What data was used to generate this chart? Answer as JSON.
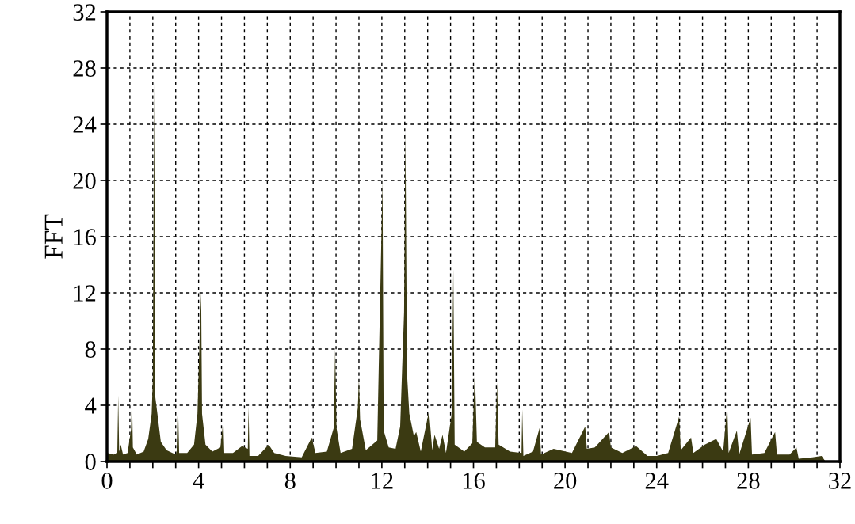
{
  "chart_data": {
    "type": "area",
    "ylabel": "FFT",
    "xlim": [
      0,
      32
    ],
    "ylim": [
      0,
      32
    ],
    "xticks": [
      0,
      {
        "value": 1,
        "label": null
      },
      {
        "value": 2,
        "label": null
      },
      {
        "value": 3,
        "label": null
      },
      4,
      {
        "value": 5,
        "label": null
      },
      {
        "value": 6,
        "label": null
      },
      {
        "value": 7,
        "label": null
      },
      8,
      {
        "value": 9,
        "label": null
      },
      {
        "value": 10,
        "label": null
      },
      {
        "value": 11,
        "label": null
      },
      12,
      {
        "value": 13,
        "label": null
      },
      {
        "value": 14,
        "label": null
      },
      {
        "value": 15,
        "label": null
      },
      16,
      {
        "value": 17,
        "label": null
      },
      {
        "value": 18,
        "label": null
      },
      {
        "value": 19,
        "label": null
      },
      20,
      {
        "value": 21,
        "label": null
      },
      {
        "value": 22,
        "label": null
      },
      {
        "value": 23,
        "label": null
      },
      24,
      {
        "value": 25,
        "label": null
      },
      {
        "value": 26,
        "label": null
      },
      {
        "value": 27,
        "label": null
      },
      28,
      {
        "value": 29,
        "label": null
      },
      {
        "value": 30,
        "label": null
      },
      {
        "value": 31,
        "label": null
      },
      32
    ],
    "yticks": [
      0,
      4,
      8,
      12,
      16,
      20,
      24,
      28,
      32
    ],
    "grid": true,
    "series": [
      {
        "color": "#3b3a12",
        "x": [
          0.02,
          0.3,
          0.45,
          0.49,
          0.53,
          0.6,
          0.7,
          0.9,
          1.05,
          1.09,
          1.13,
          1.3,
          1.6,
          1.8,
          1.95,
          2.0,
          2.06,
          2.1,
          2.2,
          2.35,
          2.6,
          3.0,
          3.08,
          3.11,
          3.15,
          3.5,
          3.8,
          3.95,
          4.05,
          4.11,
          4.15,
          4.3,
          4.6,
          4.95,
          5.08,
          5.12,
          5.5,
          5.9,
          6.15,
          6.18,
          6.22,
          6.6,
          7.06,
          7.3,
          7.8,
          8.5,
          8.94,
          9.1,
          9.6,
          9.9,
          9.96,
          10.02,
          10.2,
          10.7,
          10.95,
          11.0,
          11.05,
          11.3,
          11.8,
          12.03,
          12.08,
          12.3,
          12.6,
          12.8,
          12.97,
          13.03,
          13.1,
          13.2,
          13.4,
          13.5,
          13.7,
          14.06,
          14.2,
          14.3,
          14.5,
          14.65,
          14.8,
          15.05,
          15.12,
          15.18,
          15.6,
          15.95,
          16.06,
          16.15,
          16.5,
          16.95,
          17.03,
          17.1,
          17.6,
          18.1,
          18.13,
          18.18,
          18.6,
          18.89,
          18.95,
          19.5,
          20.3,
          20.88,
          20.95,
          21.3,
          21.92,
          22.0,
          22.5,
          23.1,
          23.6,
          24.0,
          24.5,
          24.98,
          25.05,
          25.5,
          25.6,
          26.1,
          26.6,
          26.9,
          27.08,
          27.14,
          27.5,
          27.6,
          28.1,
          28.16,
          28.7,
          29.17,
          29.25,
          29.8,
          30.1,
          30.2,
          30.8,
          31.2,
          31.37
        ],
        "values": [
          0.6,
          0.5,
          0.6,
          4.7,
          0.7,
          1.2,
          0.5,
          0.6,
          2.3,
          4.7,
          1.0,
          0.5,
          0.7,
          1.6,
          3.4,
          5.8,
          27.1,
          4.7,
          3.4,
          1.4,
          0.8,
          0.5,
          1.0,
          3.3,
          0.6,
          0.6,
          1.2,
          3.4,
          9.1,
          12.1,
          3.4,
          1.2,
          0.7,
          1.0,
          2.9,
          0.6,
          0.6,
          1.1,
          0.9,
          3.9,
          0.4,
          0.4,
          1.2,
          0.6,
          0.4,
          0.3,
          1.7,
          0.6,
          0.7,
          2.4,
          8.0,
          2.4,
          0.6,
          0.9,
          3.8,
          5.9,
          3.0,
          0.8,
          1.5,
          20.0,
          2.2,
          1.0,
          0.9,
          2.5,
          10.6,
          23.6,
          6.2,
          3.4,
          1.8,
          2.1,
          0.7,
          3.6,
          0.8,
          1.9,
          0.9,
          1.9,
          0.6,
          3.4,
          13.7,
          1.2,
          0.7,
          1.3,
          6.5,
          1.4,
          1.0,
          1.0,
          5.6,
          1.2,
          0.7,
          0.6,
          3.7,
          0.4,
          0.7,
          2.4,
          0.5,
          0.9,
          0.6,
          2.5,
          0.9,
          1.0,
          2.1,
          1.0,
          0.6,
          1.1,
          0.4,
          0.4,
          0.6,
          3.2,
          0.8,
          1.7,
          0.6,
          1.2,
          1.6,
          0.7,
          4.0,
          0.6,
          2.2,
          0.5,
          3.1,
          0.5,
          0.6,
          2.1,
          0.5,
          0.5,
          1.0,
          0.2,
          0.3,
          0.4,
          0.0
        ]
      }
    ]
  }
}
